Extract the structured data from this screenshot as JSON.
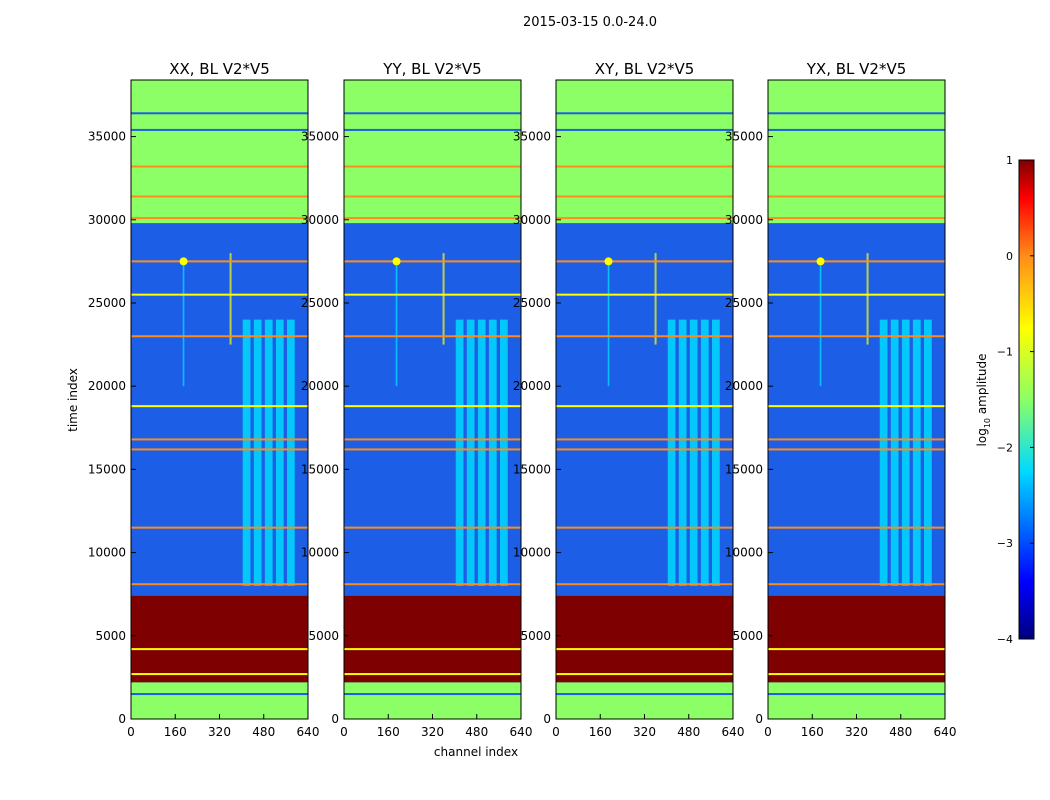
{
  "chart_data": {
    "type": "heatmap",
    "title": "2015-03-15 0.0-24.0",
    "xlabel": "channel index",
    "ylabel": "time index",
    "xlim": [
      0,
      640
    ],
    "ylim": [
      0,
      38400
    ],
    "x_ticks": [
      0,
      160,
      320,
      480,
      640
    ],
    "y_ticks": [
      0,
      5000,
      10000,
      15000,
      20000,
      25000,
      30000,
      35000
    ],
    "panels": [
      {
        "title": "XX, BL V2*V5",
        "pol": "XX"
      },
      {
        "title": "YY, BL V2*V5",
        "pol": "YY"
      },
      {
        "title": "XY, BL V2*V5",
        "pol": "XY"
      },
      {
        "title": "YX, BL V2*V5",
        "pol": "YX"
      }
    ],
    "colorbar": {
      "label_prefix": "log",
      "label_sub": "10",
      "label_suffix": " amplitude",
      "range": [
        -4,
        1
      ],
      "ticks": [
        "1",
        "0",
        "−1",
        "−2",
        "−3",
        "−4"
      ],
      "tick_values": [
        1,
        0,
        -1,
        -2,
        -3,
        -4
      ],
      "colormap": "jet"
    },
    "features": {
      "flagged_time_range": [
        2200,
        7400
      ],
      "saturated_time_range": [
        29800,
        38400
      ],
      "rfi_channel_band": [
        400,
        600
      ],
      "rfi_time_range": [
        8000,
        24000
      ],
      "spot_channel": 190,
      "spot_time": 27500,
      "line_channel": 360,
      "line_time_range": [
        22500,
        28000
      ]
    },
    "colors": {
      "flagged": "#7f0000",
      "saturated": "#8cff66",
      "background": "#1c5fe6",
      "rfi": "#00d9ff",
      "orange": "#ff8c1a",
      "yellow": "#ffff00"
    }
  }
}
